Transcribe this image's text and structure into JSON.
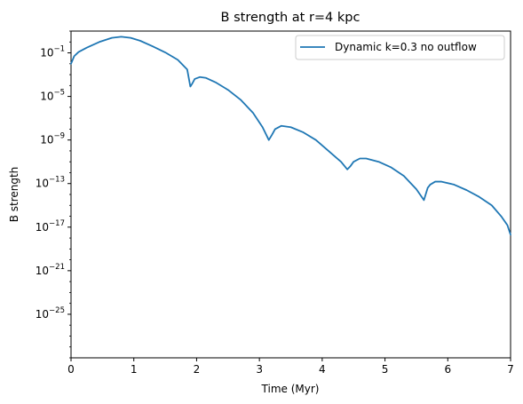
{
  "chart_data": {
    "type": "line",
    "title": "B strength at r=4 kpc",
    "xlabel": "Time (Myr)",
    "ylabel": "B strength",
    "x_scale": "linear",
    "y_scale": "log",
    "xlim": [
      0,
      7
    ],
    "ylim": [
      1e-29,
      10.0
    ],
    "x_ticks": [
      0,
      1,
      2,
      3,
      4,
      5,
      6,
      7
    ],
    "x_tick_labels": [
      "0",
      "1",
      "2",
      "3",
      "4",
      "5",
      "6",
      "7"
    ],
    "y_ticks": [
      {
        "value": 1e-25,
        "base": "10",
        "exp": "−25"
      },
      {
        "value": 1e-21,
        "base": "10",
        "exp": "−21"
      },
      {
        "value": 1e-17,
        "base": "10",
        "exp": "−17"
      },
      {
        "value": 1e-13,
        "base": "10",
        "exp": "−13"
      },
      {
        "value": 1e-09,
        "base": "10",
        "exp": "−9"
      },
      {
        "value": 1e-05,
        "base": "10",
        "exp": "−5"
      },
      {
        "value": 0.1,
        "base": "10",
        "exp": "−1"
      }
    ],
    "grid": false,
    "legend": "upper right",
    "series": [
      {
        "name": "Dynamic k=0.3 no outflow",
        "color": "#1f77b4",
        "x": [
          0,
          0.05,
          0.12,
          0.25,
          0.45,
          0.65,
          0.8,
          0.95,
          1.1,
          1.3,
          1.5,
          1.7,
          1.85,
          1.9,
          1.93,
          1.97,
          2.05,
          2.15,
          2.3,
          2.5,
          2.7,
          2.9,
          3.05,
          3.15,
          3.2,
          3.25,
          3.35,
          3.5,
          3.7,
          3.9,
          4.1,
          4.3,
          4.4,
          4.45,
          4.5,
          4.6,
          4.7,
          4.9,
          5.1,
          5.3,
          5.5,
          5.62,
          5.68,
          5.72,
          5.8,
          5.9,
          6.1,
          6.3,
          6.5,
          6.7,
          6.85,
          6.95,
          7.0
        ],
        "y": [
          0.01,
          0.05,
          0.12,
          0.3,
          1.0,
          2.4,
          3.0,
          2.4,
          1.3,
          0.4,
          0.11,
          0.023,
          0.003,
          8e-05,
          0.00015,
          0.0004,
          0.0006,
          0.0005,
          0.0002,
          4e-05,
          5e-06,
          3e-07,
          1.5e-08,
          1e-09,
          3e-09,
          1e-08,
          2e-08,
          1.5e-08,
          5e-09,
          1e-09,
          1e-10,
          1e-11,
          2e-12,
          4e-12,
          1e-11,
          2e-11,
          2e-11,
          1e-11,
          3e-12,
          5e-13,
          3e-14,
          3e-15,
          4e-14,
          8e-14,
          1.5e-13,
          1.5e-13,
          8e-14,
          2.5e-14,
          6e-15,
          1e-15,
          1e-16,
          1.5e-17,
          2e-18
        ]
      }
    ]
  }
}
